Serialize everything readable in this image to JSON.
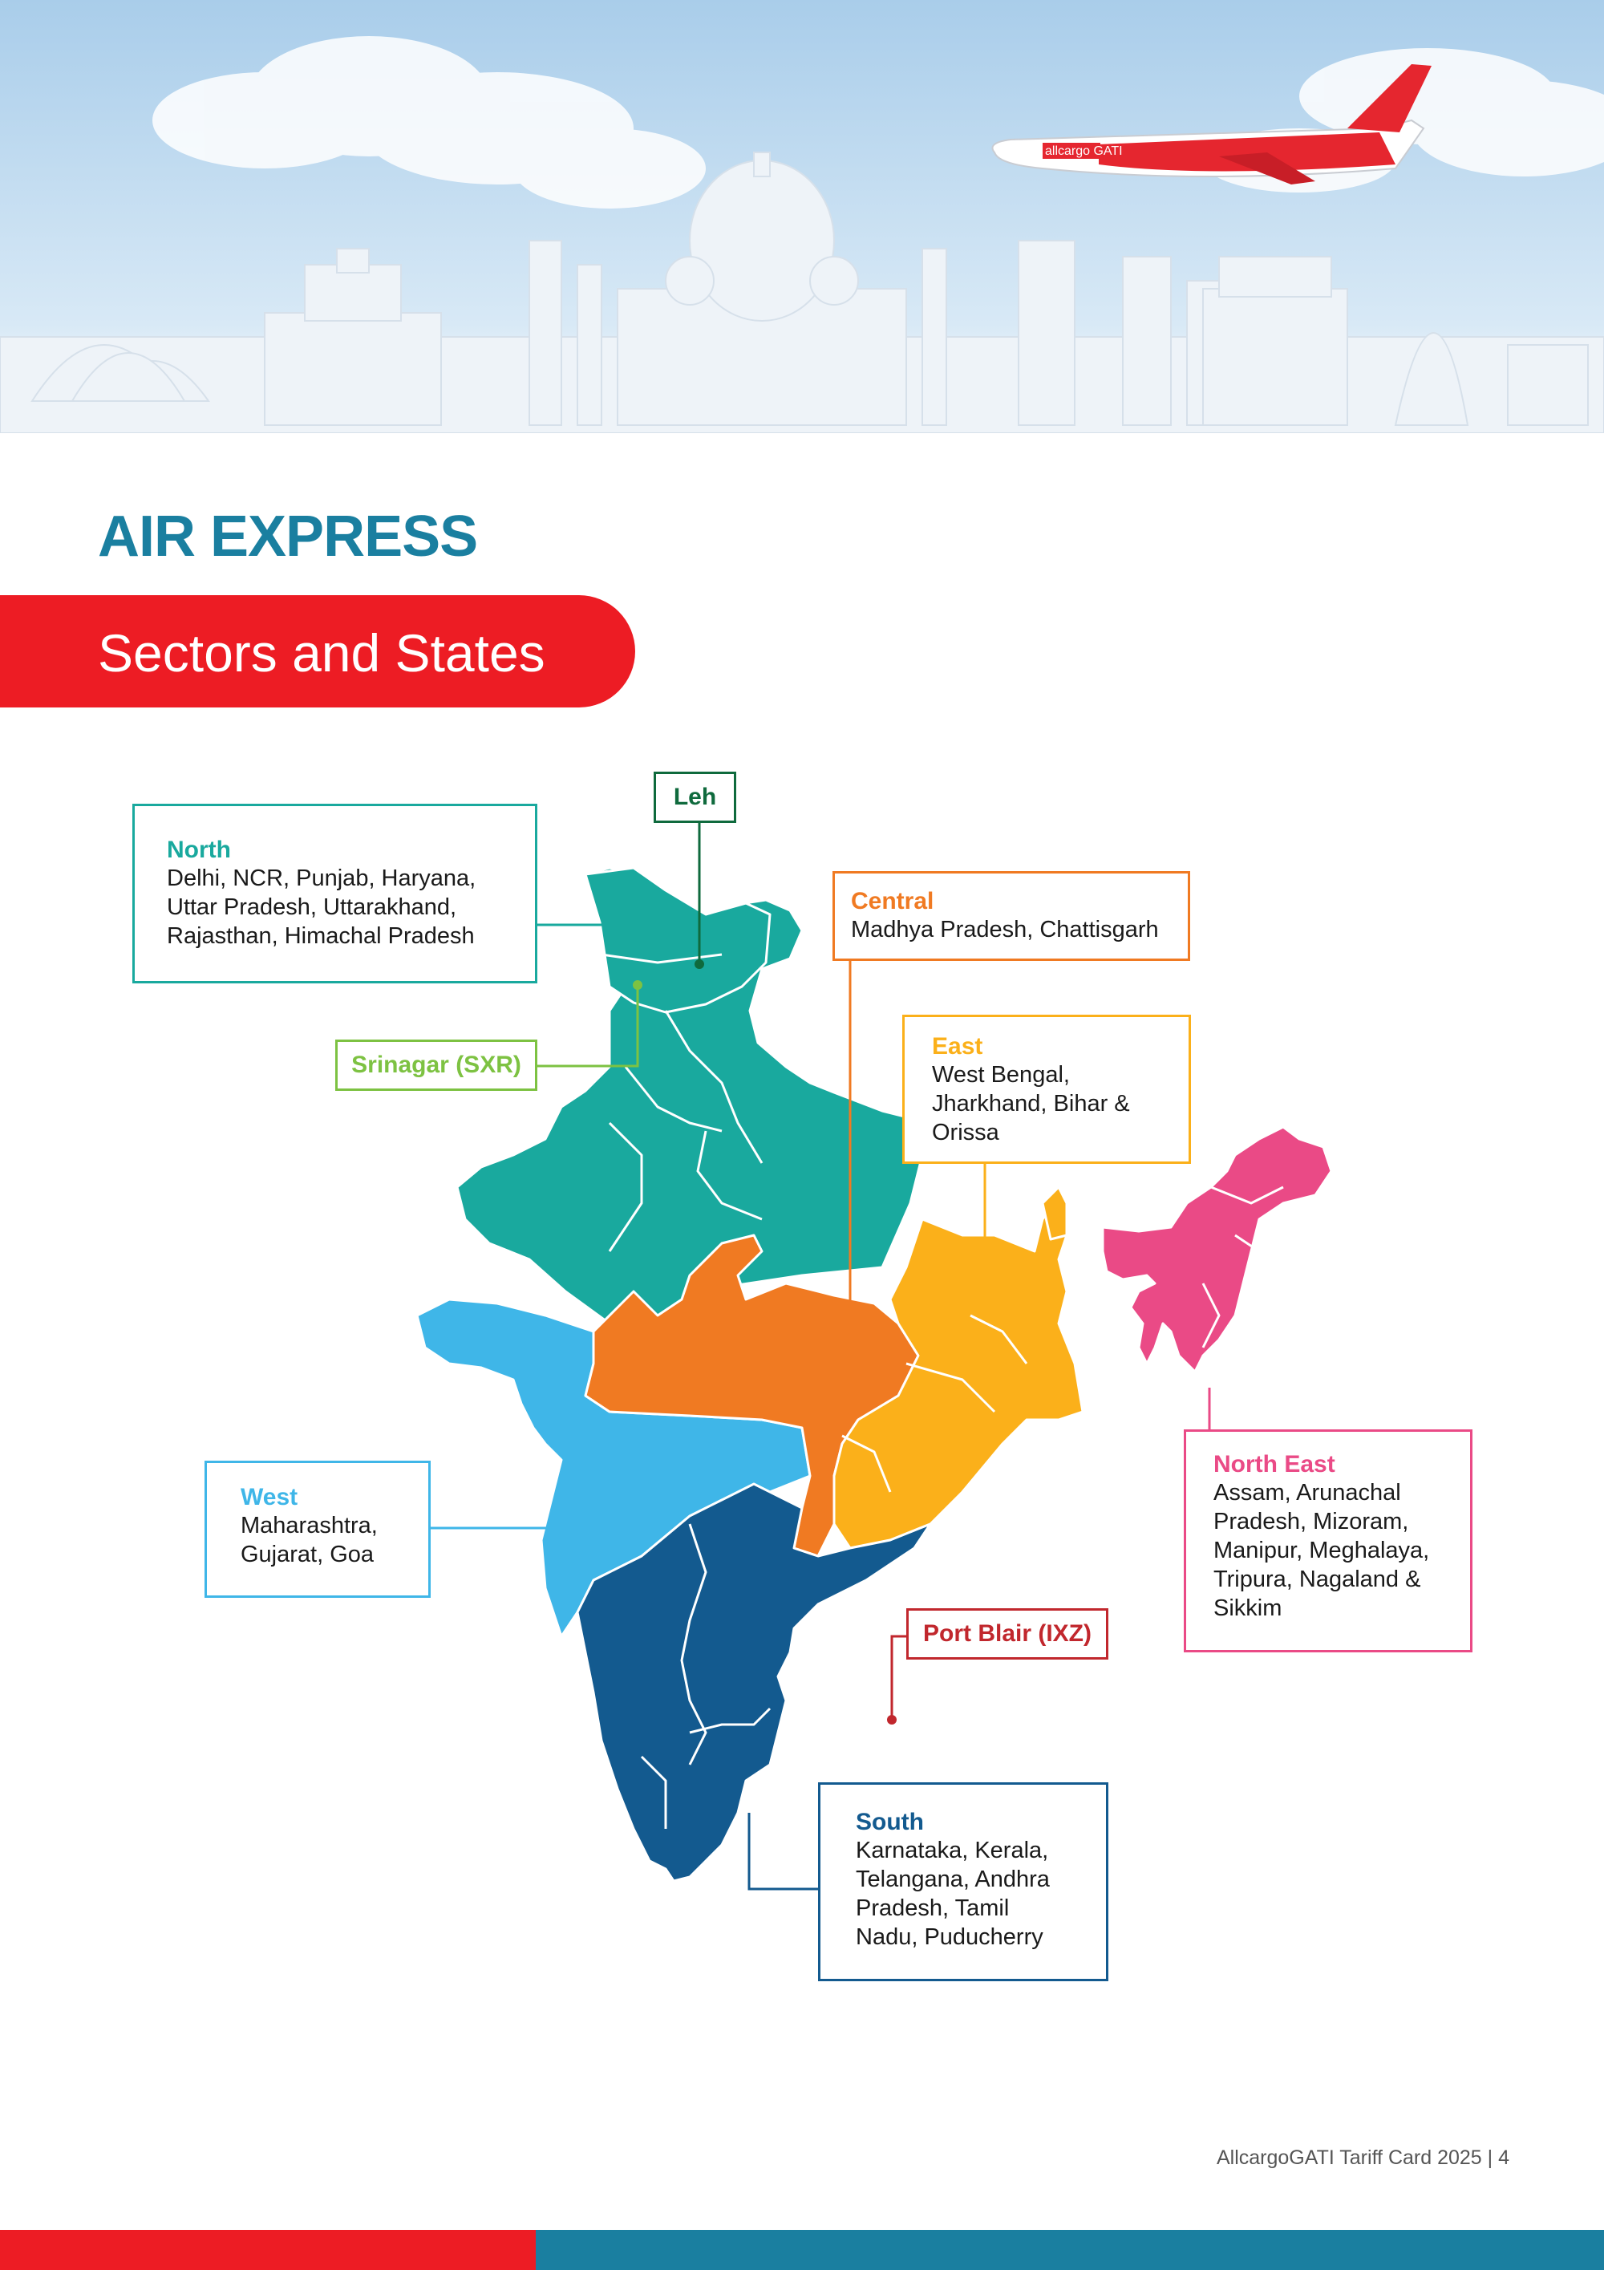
{
  "heading": {
    "title": "AIR EXPRESS",
    "subtitle": "Sectors and States"
  },
  "hero": {
    "aircraft_livery": "allcargo GATI"
  },
  "regions": {
    "north": {
      "name": "North",
      "states": "Delhi, NCR, Punjab, Haryana, Uttar Pradesh, Uttarakhand, Rajasthan, Himachal Pradesh",
      "color": "#19a99e"
    },
    "central": {
      "name": "Central",
      "states": "Madhya Pradesh, Chattisgarh",
      "color": "#f07a22"
    },
    "east": {
      "name": "East",
      "states": "West Bengal, Jharkhand, Bihar & Orissa",
      "color": "#fbb01a"
    },
    "west": {
      "name": "West",
      "states": "Maharashtra, Gujarat, Goa",
      "color": "#3fb6e8"
    },
    "north_east": {
      "name": "North East",
      "states": "Assam, Arunachal Pradesh, Mizoram, Manipur, Meghalaya, Tripura, Nagaland & Sikkim",
      "color": "#ea4a86"
    },
    "south": {
      "name": "South",
      "states": "Karnataka, Kerala, Telangana, Andhra Pradesh, Tamil Nadu, Puducherry",
      "color": "#135a8f"
    }
  },
  "locations": {
    "leh": {
      "label": "Leh",
      "color": "#0f6a3d"
    },
    "srinagar": {
      "label": "Srinagar (SXR)",
      "color": "#7dc242"
    },
    "port_blair": {
      "label": "Port Blair (IXZ)",
      "color": "#c1272d"
    }
  },
  "footer": {
    "text": "AllcargoGATI Tariff Card 2025 | 4"
  }
}
